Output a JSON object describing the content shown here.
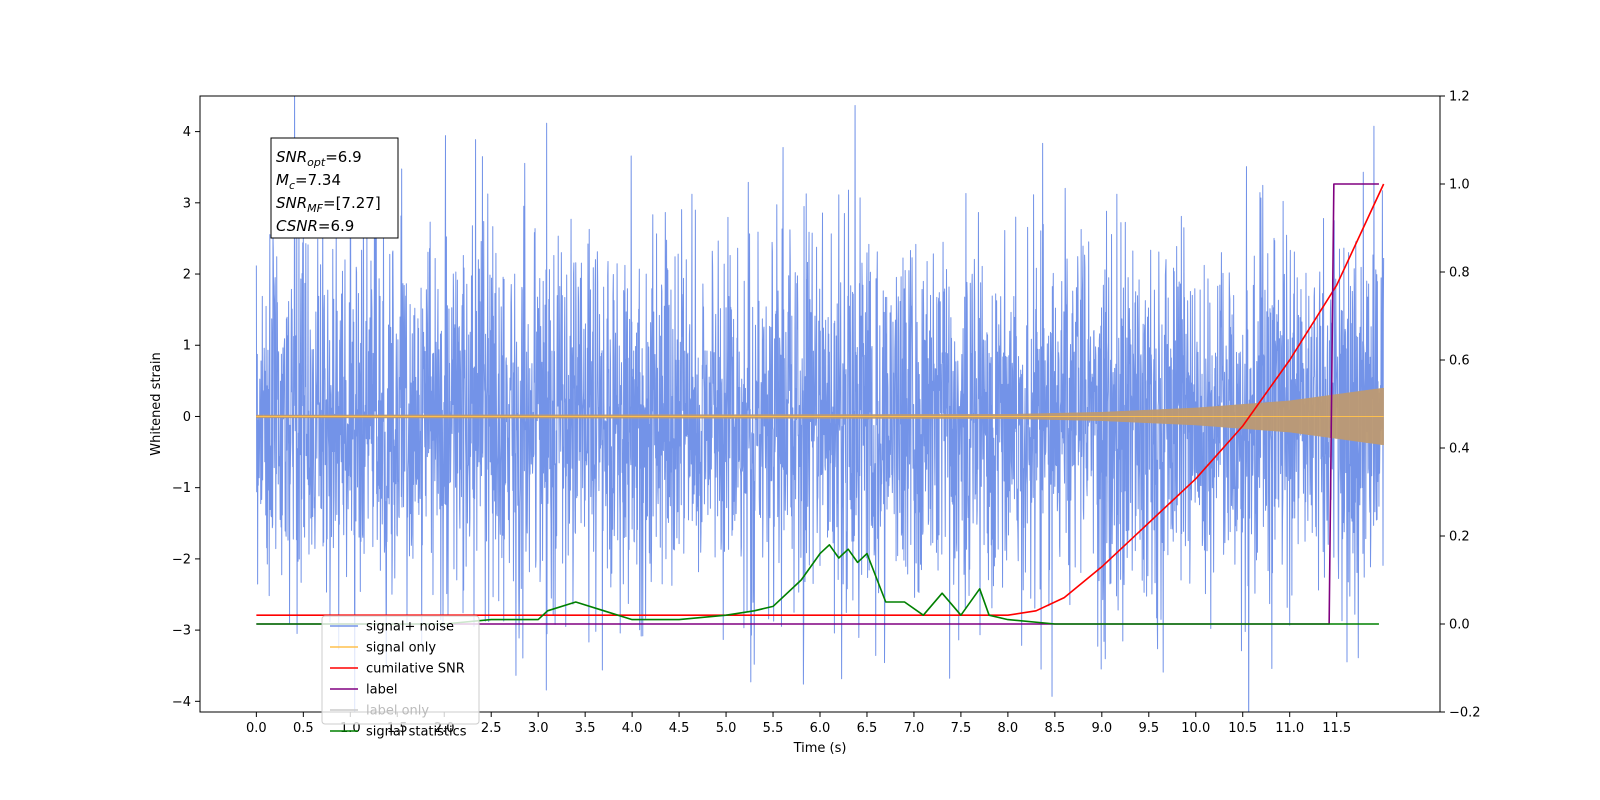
{
  "chart_data": {
    "type": "line",
    "xlabel": "Time (s)",
    "ylabel": "Whitened strain",
    "xlim": [
      -0.6,
      12.6
    ],
    "ylim": [
      -4.15,
      4.5
    ],
    "y2lim": [
      -0.2,
      1.2
    ],
    "x_ticks": [
      "0.0",
      "0.5",
      "1.0",
      "1.5",
      "2.0",
      "2.5",
      "3.0",
      "3.5",
      "4.0",
      "4.5",
      "5.0",
      "5.5",
      "6.0",
      "6.5",
      "7.0",
      "7.5",
      "8.0",
      "8.5",
      "9.0",
      "9.5",
      "10.0",
      "10.5",
      "11.0",
      "11.5"
    ],
    "y_ticks": [
      "4",
      "3",
      "2",
      "1",
      "0",
      "−1",
      "−2",
      "−3",
      "−4"
    ],
    "y2_ticks": [
      "1.2",
      "1.0",
      "0.8",
      "0.6",
      "0.4",
      "0.2",
      "0.0",
      "−0.2"
    ],
    "legend_position": "lower-left",
    "grid": false,
    "annotation": {
      "lines": [
        {
          "base": "SNR",
          "sub": "opt",
          "value": "=6.9"
        },
        {
          "base": "M",
          "sub": "c",
          "value": "=7.34"
        },
        {
          "base": "SNR",
          "sub": "MF",
          "value": "=[7.27]"
        },
        {
          "base": "CSNR",
          "sub": "",
          "value": "=6.9"
        }
      ]
    },
    "series": [
      {
        "name": "signal+ noise",
        "color": "#7393e8",
        "axis": "left",
        "kind": "noise",
        "t_range": [
          0.0,
          12.0
        ],
        "approx_amplitude": 1.3
      },
      {
        "name": "signal only",
        "color": "#ffc04d",
        "axis": "left",
        "kind": "chirp",
        "t_range": [
          0.0,
          12.0
        ],
        "amplitude_points": [
          [
            0,
            0.02
          ],
          [
            8.0,
            0.03
          ],
          [
            9.0,
            0.06
          ],
          [
            10.0,
            0.12
          ],
          [
            11.0,
            0.22
          ],
          [
            12.0,
            0.4
          ]
        ]
      },
      {
        "name": "cumilative SNR",
        "color": "#ff0000",
        "axis": "right",
        "x": [
          0.0,
          0.01,
          8.0,
          8.3,
          8.6,
          9.0,
          9.5,
          10.0,
          10.5,
          11.0,
          11.5,
          12.0
        ],
        "y": [
          0.02,
          0.02,
          0.02,
          0.03,
          0.06,
          0.13,
          0.23,
          0.33,
          0.45,
          0.6,
          0.77,
          1.0
        ]
      },
      {
        "name": "label",
        "color": "#800080",
        "axis": "right",
        "x": [
          0.0,
          11.42,
          11.47,
          11.95
        ],
        "y": [
          0.0,
          0.0,
          1.0,
          1.0
        ]
      },
      {
        "name": "label only",
        "color": "#cccccc",
        "axis": "right",
        "x": [],
        "y": []
      },
      {
        "name": "signal statistics",
        "color": "#008000",
        "axis": "right",
        "x": [
          0.0,
          1.0,
          2.0,
          2.5,
          3.0,
          3.1,
          3.4,
          3.7,
          4.0,
          4.5,
          5.0,
          5.3,
          5.5,
          5.8,
          6.0,
          6.1,
          6.2,
          6.3,
          6.4,
          6.5,
          6.7,
          6.9,
          7.1,
          7.3,
          7.5,
          7.7,
          7.8,
          8.0,
          8.5,
          9.0,
          10.0,
          11.0,
          11.95
        ],
        "y": [
          0.0,
          0.0,
          0.0,
          0.01,
          0.01,
          0.03,
          0.05,
          0.03,
          0.01,
          0.01,
          0.02,
          0.03,
          0.04,
          0.1,
          0.16,
          0.18,
          0.15,
          0.17,
          0.14,
          0.16,
          0.05,
          0.05,
          0.02,
          0.07,
          0.02,
          0.08,
          0.02,
          0.01,
          0.0,
          0.0,
          0.0,
          0.0,
          0.0
        ]
      }
    ]
  }
}
